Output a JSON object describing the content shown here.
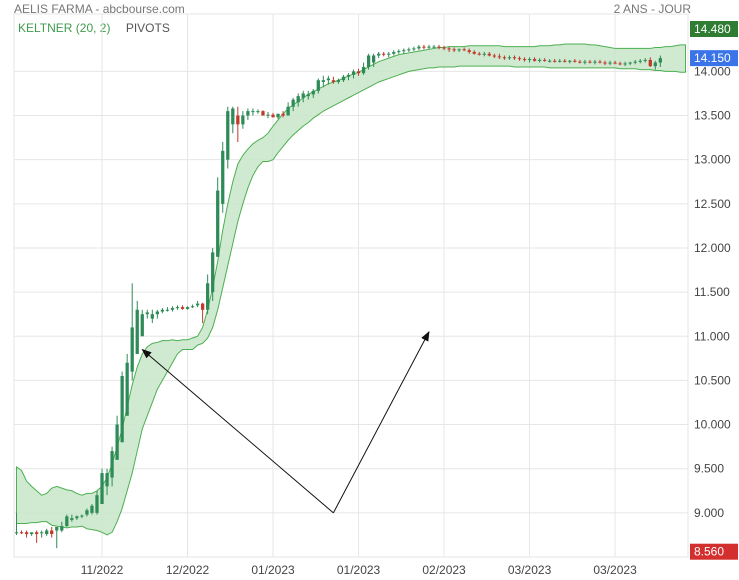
{
  "header": {
    "title": "AELIS FARMA - abcbourse.com",
    "period": "2 ANS - JOUR"
  },
  "legend": {
    "keltner": "KELTNER (20, 2)",
    "pivots": "PIVOTS"
  },
  "colors": {
    "up": "#2e8b57",
    "down": "#c0392b",
    "band_fill": "#c8e6c9",
    "band_line": "#4caf50",
    "grid": "#e6e6e6",
    "last_price_bg": "#3b73e8",
    "max_bg": "#2e7d32",
    "min_bg": "#d32f2f"
  },
  "price_badges": {
    "max": "14.480",
    "last": "14.150",
    "min": "8.560"
  },
  "chart_data": {
    "type": "candlestick",
    "y_ticks": [
      "14.000",
      "13.500",
      "13.000",
      "12.500",
      "12.000",
      "11.500",
      "11.000",
      "10.500",
      "10.000",
      "9.500",
      "9.000"
    ],
    "x_ticks": [
      "11/2022",
      "12/2022",
      "01/2023",
      "01/2023",
      "02/2023",
      "03/2023",
      "03/2023"
    ],
    "x_tick_index": [
      17,
      34,
      51,
      68,
      85,
      102,
      119
    ],
    "ylim": [
      8.5,
      14.65
    ],
    "series_count": 134,
    "candles_note": "open/high/low/close per trading day, estimated",
    "candles": [
      [
        8.78,
        9.0,
        8.75,
        8.78
      ],
      [
        8.78,
        8.8,
        8.76,
        8.77
      ],
      [
        8.78,
        8.8,
        8.72,
        8.76
      ],
      [
        8.76,
        8.78,
        8.74,
        8.78
      ],
      [
        8.78,
        8.8,
        8.66,
        8.76
      ],
      [
        8.78,
        8.8,
        8.72,
        8.78
      ],
      [
        8.76,
        8.82,
        8.74,
        8.8
      ],
      [
        8.8,
        8.84,
        8.72,
        8.76
      ],
      [
        8.8,
        8.82,
        8.6,
        8.84
      ],
      [
        8.8,
        8.9,
        8.78,
        8.85
      ],
      [
        8.85,
        8.98,
        8.84,
        8.96
      ],
      [
        8.92,
        8.98,
        8.9,
        8.94
      ],
      [
        8.94,
        8.97,
        8.92,
        8.96
      ],
      [
        8.96,
        8.98,
        8.94,
        8.97
      ],
      [
        8.98,
        9.05,
        8.96,
        9.03
      ],
      [
        9.0,
        9.1,
        8.98,
        9.08
      ],
      [
        9.0,
        9.25,
        8.98,
        9.2
      ],
      [
        9.1,
        9.5,
        9.1,
        9.45
      ],
      [
        9.3,
        9.5,
        9.2,
        9.45
      ],
      [
        9.4,
        9.75,
        9.3,
        9.7
      ],
      [
        9.6,
        10.1,
        9.6,
        10.0
      ],
      [
        9.8,
        10.6,
        9.8,
        10.55
      ],
      [
        10.1,
        10.8,
        10.1,
        10.7
      ],
      [
        10.6,
        11.6,
        10.5,
        11.1
      ],
      [
        10.8,
        11.4,
        10.8,
        11.3
      ],
      [
        11.0,
        11.3,
        11.0,
        11.25
      ],
      [
        11.25,
        11.3,
        11.2,
        11.27
      ],
      [
        11.2,
        11.3,
        11.15,
        11.25
      ],
      [
        11.25,
        11.3,
        11.2,
        11.28
      ],
      [
        11.28,
        11.32,
        11.26,
        11.3
      ],
      [
        11.3,
        11.33,
        11.28,
        11.3
      ],
      [
        11.3,
        11.34,
        11.28,
        11.32
      ],
      [
        11.32,
        11.35,
        11.3,
        11.33
      ],
      [
        11.33,
        11.35,
        11.3,
        11.31
      ],
      [
        11.31,
        11.34,
        11.3,
        11.33
      ],
      [
        11.33,
        11.36,
        11.32,
        11.34
      ],
      [
        11.35,
        11.4,
        11.33,
        11.37
      ],
      [
        11.37,
        11.38,
        11.15,
        11.3
      ],
      [
        11.3,
        11.7,
        11.25,
        11.6
      ],
      [
        11.5,
        12.0,
        11.4,
        11.95
      ],
      [
        11.9,
        12.8,
        11.9,
        12.65
      ],
      [
        12.5,
        13.2,
        12.4,
        13.1
      ],
      [
        13.0,
        13.6,
        12.9,
        13.55
      ],
      [
        13.4,
        13.6,
        13.3,
        13.58
      ],
      [
        13.5,
        13.6,
        13.2,
        13.4
      ],
      [
        13.4,
        13.55,
        13.35,
        13.5
      ],
      [
        13.5,
        13.58,
        13.45,
        13.55
      ],
      [
        13.55,
        13.58,
        13.5,
        13.55
      ],
      [
        13.55,
        13.57,
        13.52,
        13.55
      ],
      [
        13.55,
        13.56,
        13.5,
        13.5
      ],
      [
        13.5,
        13.54,
        13.47,
        13.51
      ],
      [
        13.51,
        13.53,
        13.48,
        13.48
      ],
      [
        13.48,
        13.52,
        13.46,
        13.52
      ],
      [
        13.52,
        13.55,
        13.48,
        13.5
      ],
      [
        13.5,
        13.65,
        13.5,
        13.6
      ],
      [
        13.6,
        13.7,
        13.55,
        13.68
      ],
      [
        13.65,
        13.75,
        13.6,
        13.72
      ],
      [
        13.7,
        13.78,
        13.65,
        13.75
      ],
      [
        13.72,
        13.78,
        13.68,
        13.74
      ],
      [
        13.74,
        13.8,
        13.7,
        13.78
      ],
      [
        13.78,
        13.92,
        13.75,
        13.9
      ],
      [
        13.88,
        13.95,
        13.82,
        13.9
      ],
      [
        13.9,
        13.95,
        13.85,
        13.92
      ],
      [
        13.9,
        13.94,
        13.86,
        13.88
      ],
      [
        13.88,
        13.92,
        13.86,
        13.9
      ],
      [
        13.9,
        13.96,
        13.88,
        13.94
      ],
      [
        13.94,
        13.98,
        13.9,
        13.96
      ],
      [
        13.96,
        14.02,
        13.92,
        14.0
      ],
      [
        14.0,
        14.03,
        13.95,
        13.98
      ],
      [
        13.98,
        14.1,
        13.96,
        14.05
      ],
      [
        14.05,
        14.2,
        14.02,
        14.18
      ],
      [
        14.1,
        14.2,
        14.05,
        14.18
      ],
      [
        14.18,
        14.22,
        14.15,
        14.2
      ],
      [
        14.2,
        14.22,
        14.17,
        14.19
      ],
      [
        14.19,
        14.22,
        14.16,
        14.2
      ],
      [
        14.2,
        14.24,
        14.18,
        14.22
      ],
      [
        14.22,
        14.25,
        14.2,
        14.23
      ],
      [
        14.23,
        14.26,
        14.2,
        14.24
      ],
      [
        14.24,
        14.27,
        14.22,
        14.25
      ],
      [
        14.25,
        14.28,
        14.23,
        14.26
      ],
      [
        14.26,
        14.3,
        14.24,
        14.28
      ],
      [
        14.28,
        14.3,
        14.25,
        14.27
      ],
      [
        14.27,
        14.3,
        14.25,
        14.28
      ],
      [
        14.28,
        14.3,
        14.26,
        14.28
      ],
      [
        14.28,
        14.3,
        14.25,
        14.27
      ],
      [
        14.27,
        14.29,
        14.24,
        14.26
      ],
      [
        14.26,
        14.28,
        14.22,
        14.25
      ],
      [
        14.25,
        14.27,
        14.22,
        14.24
      ],
      [
        14.24,
        14.26,
        14.22,
        14.25
      ],
      [
        14.25,
        14.27,
        14.23,
        14.24
      ],
      [
        14.24,
        14.26,
        14.2,
        14.22
      ],
      [
        14.22,
        14.24,
        14.19,
        14.2
      ],
      [
        14.2,
        14.22,
        14.18,
        14.19
      ],
      [
        14.19,
        14.22,
        14.17,
        14.2
      ],
      [
        14.2,
        14.22,
        14.17,
        14.18
      ],
      [
        14.18,
        14.2,
        14.15,
        14.17
      ],
      [
        14.17,
        14.2,
        14.14,
        14.16
      ],
      [
        14.16,
        14.18,
        14.13,
        14.15
      ],
      [
        14.15,
        14.18,
        14.13,
        14.16
      ],
      [
        14.16,
        14.18,
        14.13,
        14.15
      ],
      [
        14.15,
        14.17,
        14.12,
        14.14
      ],
      [
        14.14,
        14.16,
        14.11,
        14.13
      ],
      [
        14.13,
        14.16,
        14.1,
        14.14
      ],
      [
        14.14,
        14.16,
        14.11,
        14.12
      ],
      [
        14.12,
        14.15,
        14.1,
        14.13
      ],
      [
        14.13,
        14.15,
        14.11,
        14.12
      ],
      [
        14.12,
        14.14,
        14.1,
        14.12
      ],
      [
        14.12,
        14.14,
        14.1,
        14.11
      ],
      [
        14.11,
        14.14,
        14.1,
        14.12
      ],
      [
        14.12,
        14.14,
        14.1,
        14.11
      ],
      [
        14.11,
        14.13,
        14.09,
        14.12
      ],
      [
        14.12,
        14.14,
        14.1,
        14.11
      ],
      [
        14.11,
        14.13,
        14.09,
        14.1
      ],
      [
        14.1,
        14.13,
        14.08,
        14.11
      ],
      [
        14.11,
        14.13,
        14.09,
        14.1
      ],
      [
        14.1,
        14.13,
        14.08,
        14.11
      ],
      [
        14.11,
        14.13,
        14.09,
        14.1
      ],
      [
        14.1,
        14.12,
        14.07,
        14.09
      ],
      [
        14.09,
        14.12,
        14.07,
        14.1
      ],
      [
        14.1,
        14.12,
        14.08,
        14.09
      ],
      [
        14.09,
        14.11,
        14.07,
        14.08
      ],
      [
        14.08,
        14.11,
        14.06,
        14.09
      ],
      [
        14.09,
        14.11,
        14.07,
        14.1
      ],
      [
        14.1,
        14.13,
        14.08,
        14.11
      ],
      [
        14.11,
        14.14,
        14.09,
        14.12
      ],
      [
        14.12,
        14.15,
        14.1,
        14.13
      ],
      [
        14.13,
        14.16,
        14.05,
        14.06
      ],
      [
        14.06,
        14.12,
        14.02,
        14.1
      ],
      [
        14.1,
        14.18,
        14.05,
        14.15
      ]
    ],
    "keltner_upper": [
      9.52,
      9.48,
      9.36,
      9.3,
      9.25,
      9.2,
      9.22,
      9.28,
      9.3,
      9.28,
      9.26,
      9.25,
      9.22,
      9.2,
      9.22,
      9.22,
      9.25,
      9.3,
      9.4,
      9.55,
      9.75,
      9.95,
      10.2,
      10.45,
      10.65,
      10.8,
      10.88,
      10.92,
      10.93,
      10.95,
      10.95,
      10.96,
      10.95,
      10.96,
      10.96,
      10.98,
      11.0,
      11.1,
      11.3,
      11.55,
      11.85,
      12.2,
      12.5,
      12.75,
      12.95,
      13.05,
      13.12,
      13.18,
      13.22,
      13.25,
      13.3,
      13.38,
      13.45,
      13.52,
      13.58,
      13.62,
      13.66,
      13.7,
      13.74,
      13.77,
      13.8,
      13.83,
      13.86,
      13.88,
      13.9,
      13.92,
      13.95,
      13.97,
      13.99,
      14.02,
      14.05,
      14.08,
      14.11,
      14.13,
      14.15,
      14.17,
      14.19,
      14.2,
      14.21,
      14.22,
      14.23,
      14.24,
      14.25,
      14.26,
      14.27,
      14.27,
      14.28,
      14.28,
      14.28,
      14.28,
      14.29,
      14.29,
      14.29,
      14.29,
      14.29,
      14.29,
      14.29,
      14.28,
      14.28,
      14.28,
      14.28,
      14.28,
      14.28,
      14.28,
      14.29,
      14.29,
      14.29,
      14.3,
      14.3,
      14.31,
      14.31,
      14.31,
      14.31,
      14.31,
      14.3,
      14.3,
      14.29,
      14.28,
      14.27,
      14.26,
      14.26,
      14.26,
      14.26,
      14.26,
      14.26,
      14.26,
      14.26,
      14.27,
      14.27,
      14.28,
      14.28,
      14.29,
      14.3,
      14.3
    ],
    "keltner_lower": [
      8.88,
      8.88,
      8.88,
      8.89,
      8.89,
      8.9,
      8.9,
      8.86,
      8.85,
      8.84,
      8.83,
      8.84,
      8.84,
      8.85,
      8.82,
      8.81,
      8.8,
      8.78,
      8.75,
      8.78,
      8.9,
      9.05,
      9.25,
      9.45,
      9.7,
      9.95,
      10.1,
      10.25,
      10.4,
      10.5,
      10.6,
      10.7,
      10.8,
      10.85,
      10.85,
      10.85,
      10.9,
      10.92,
      10.98,
      11.1,
      11.3,
      11.55,
      11.8,
      12.05,
      12.3,
      12.5,
      12.68,
      12.82,
      12.92,
      12.98,
      12.98,
      13.0,
      13.08,
      13.15,
      13.22,
      13.28,
      13.33,
      13.38,
      13.42,
      13.47,
      13.51,
      13.55,
      13.58,
      13.61,
      13.64,
      13.67,
      13.7,
      13.73,
      13.76,
      13.79,
      13.82,
      13.85,
      13.88,
      13.9,
      13.92,
      13.94,
      13.96,
      13.98,
      14.0,
      14.01,
      14.02,
      14.03,
      14.04,
      14.04,
      14.05,
      14.05,
      14.05,
      14.05,
      14.06,
      14.06,
      14.06,
      14.06,
      14.06,
      14.06,
      14.06,
      14.06,
      14.06,
      14.06,
      14.06,
      14.05,
      14.05,
      14.05,
      14.05,
      14.05,
      14.05,
      14.05,
      14.04,
      14.04,
      14.04,
      14.04,
      14.04,
      14.04,
      14.04,
      14.04,
      14.04,
      14.04,
      14.04,
      14.04,
      14.04,
      14.04,
      14.03,
      14.03,
      14.03,
      14.03,
      14.02,
      14.02,
      14.02,
      14.01,
      14.01,
      14.0,
      14.0,
      14.0,
      13.99,
      13.99
    ],
    "pivot_lines": [
      {
        "from_index": 63,
        "from_value": 9.0,
        "to_index": 25,
        "to_value": 10.85
      },
      {
        "from_index": 63,
        "from_value": 9.0,
        "to_index": 82,
        "to_value": 11.05
      }
    ]
  }
}
